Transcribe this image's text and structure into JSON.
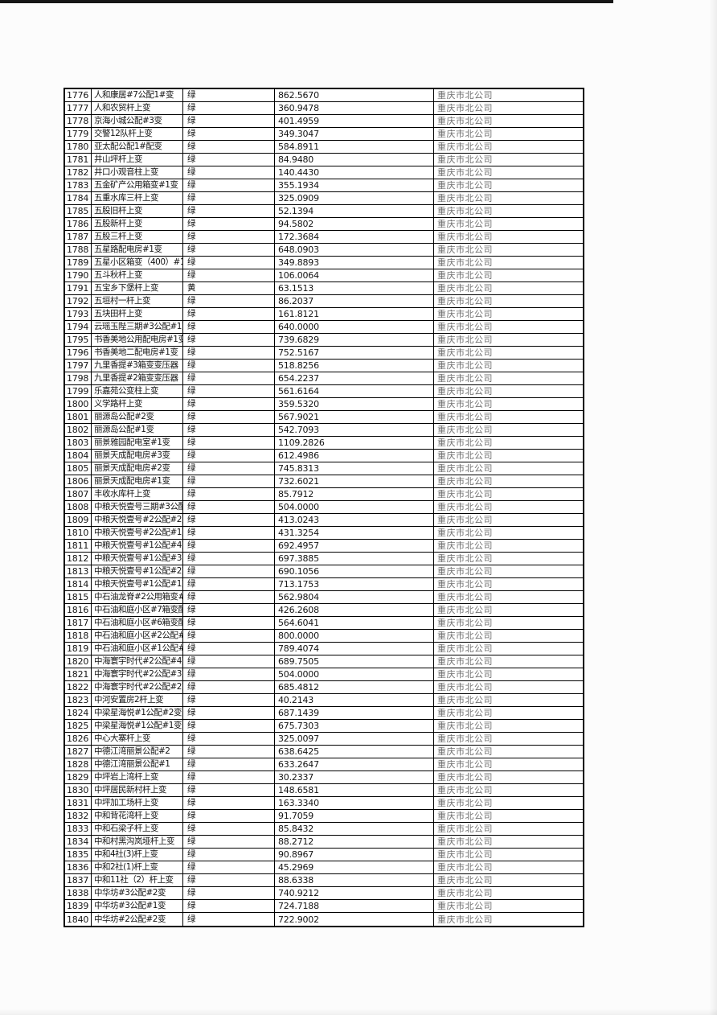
{
  "colors": {
    "grid": "#000000",
    "text": "#141414",
    "company_text": "#6f6f6f",
    "top_bar": "#161616"
  },
  "table": {
    "rows": [
      {
        "id": "1776",
        "name": "人和康居#7公配1#变",
        "status": "绿",
        "value": "862.5670",
        "company": "重庆市北公司"
      },
      {
        "id": "1777",
        "name": "人和农贸杆上变",
        "status": "绿",
        "value": "360.9478",
        "company": "重庆市北公司"
      },
      {
        "id": "1778",
        "name": "京海小城公配#3变",
        "status": "绿",
        "value": "401.4959",
        "company": "重庆市北公司"
      },
      {
        "id": "1779",
        "name": "交警12队杆上变",
        "status": "绿",
        "value": "349.3047",
        "company": "重庆市北公司"
      },
      {
        "id": "1780",
        "name": "亚太配公配1#配变",
        "status": "绿",
        "value": "584.8911",
        "company": "重庆市北公司"
      },
      {
        "id": "1781",
        "name": "井山坪杆上变",
        "status": "绿",
        "value": "84.9480",
        "company": "重庆市北公司"
      },
      {
        "id": "1782",
        "name": "井口小观音柱上变",
        "status": "绿",
        "value": "140.4430",
        "company": "重庆市北公司"
      },
      {
        "id": "1783",
        "name": "五金矿产公用箱变#1变",
        "status": "绿",
        "value": "355.1934",
        "company": "重庆市北公司"
      },
      {
        "id": "1784",
        "name": "五重水库三杆上变",
        "status": "绿",
        "value": "325.0909",
        "company": "重庆市北公司"
      },
      {
        "id": "1785",
        "name": "五股旧杆上变",
        "status": "绿",
        "value": "52.1394",
        "company": "重庆市北公司"
      },
      {
        "id": "1786",
        "name": "五股新杆上变",
        "status": "绿",
        "value": "94.5802",
        "company": "重庆市北公司"
      },
      {
        "id": "1787",
        "name": "五股三杆上变",
        "status": "绿",
        "value": "172.3684",
        "company": "重庆市北公司"
      },
      {
        "id": "1788",
        "name": "五星路配电房#1变",
        "status": "绿",
        "value": "648.0903",
        "company": "重庆市北公司"
      },
      {
        "id": "1789",
        "name": "五星小区箱变（400）#1变",
        "status": "绿",
        "value": "349.8893",
        "company": "重庆市北公司"
      },
      {
        "id": "1790",
        "name": "五斗秋杆上变",
        "status": "绿",
        "value": "106.0064",
        "company": "重庆市北公司"
      },
      {
        "id": "1791",
        "name": "五宝乡下堡杆上变",
        "status": "黄",
        "value": "63.1513",
        "company": "重庆市北公司"
      },
      {
        "id": "1792",
        "name": "五垣村一杆上变",
        "status": "绿",
        "value": "86.2037",
        "company": "重庆市北公司"
      },
      {
        "id": "1793",
        "name": "五块田杆上变",
        "status": "绿",
        "value": "161.8121",
        "company": "重庆市北公司"
      },
      {
        "id": "1794",
        "name": "云瑶玉陛三期#3公配#1变",
        "status": "绿",
        "value": "640.0000",
        "company": "重庆市北公司"
      },
      {
        "id": "1795",
        "name": "书香美地公用配电房#1变",
        "status": "绿",
        "value": "739.6829",
        "company": "重庆市北公司"
      },
      {
        "id": "1796",
        "name": "书香美地二配电房#1变",
        "status": "绿",
        "value": "752.5167",
        "company": "重庆市北公司"
      },
      {
        "id": "1797",
        "name": "九里香提#3箱变变压器",
        "status": "绿",
        "value": "518.8256",
        "company": "重庆市北公司"
      },
      {
        "id": "1798",
        "name": "九里香提#2箱变变压器",
        "status": "绿",
        "value": "654.2237",
        "company": "重庆市北公司"
      },
      {
        "id": "1799",
        "name": "乐嘉苑公变柱上变",
        "status": "绿",
        "value": "561.6164",
        "company": "重庆市北公司"
      },
      {
        "id": "1800",
        "name": "义学路杆上变",
        "status": "绿",
        "value": "359.5320",
        "company": "重庆市北公司"
      },
      {
        "id": "1801",
        "name": "丽源岛公配#2变",
        "status": "绿",
        "value": "567.9021",
        "company": "重庆市北公司"
      },
      {
        "id": "1802",
        "name": "丽源岛公配#1变",
        "status": "绿",
        "value": "542.7093",
        "company": "重庆市北公司"
      },
      {
        "id": "1803",
        "name": "丽景雅园配电室#1变",
        "status": "绿",
        "value": "1109.2826",
        "company": "重庆市北公司"
      },
      {
        "id": "1804",
        "name": "丽景天成配电房#3变",
        "status": "绿",
        "value": "612.4986",
        "company": "重庆市北公司"
      },
      {
        "id": "1805",
        "name": "丽景天成配电房#2变",
        "status": "绿",
        "value": "745.8313",
        "company": "重庆市北公司"
      },
      {
        "id": "1806",
        "name": "丽景天成配电房#1变",
        "status": "绿",
        "value": "732.6021",
        "company": "重庆市北公司"
      },
      {
        "id": "1807",
        "name": "丰收水库杆上变",
        "status": "绿",
        "value": "85.7912",
        "company": "重庆市北公司"
      },
      {
        "id": "1808",
        "name": "中粮天悦壹号三期#3公配",
        "status": "绿",
        "value": "504.0000",
        "company": "重庆市北公司"
      },
      {
        "id": "1809",
        "name": "中粮天悦壹号#2公配#2变",
        "status": "绿",
        "value": "413.0243",
        "company": "重庆市北公司"
      },
      {
        "id": "1810",
        "name": "中粮天悦壹号#2公配#1变",
        "status": "绿",
        "value": "431.3254",
        "company": "重庆市北公司"
      },
      {
        "id": "1811",
        "name": "中粮天悦壹号#1公配#4变",
        "status": "绿",
        "value": "692.4957",
        "company": "重庆市北公司"
      },
      {
        "id": "1812",
        "name": "中粮天悦壹号#1公配#3变",
        "status": "绿",
        "value": "697.3885",
        "company": "重庆市北公司"
      },
      {
        "id": "1813",
        "name": "中粮天悦壹号#1公配#2变",
        "status": "绿",
        "value": "690.1056",
        "company": "重庆市北公司"
      },
      {
        "id": "1814",
        "name": "中粮天悦壹号#1公配#1变",
        "status": "绿",
        "value": "713.1753",
        "company": "重庆市北公司"
      },
      {
        "id": "1815",
        "name": "中石油龙脊#2公用箱变#1",
        "status": "绿",
        "value": "562.9804",
        "company": "重庆市北公司"
      },
      {
        "id": "1816",
        "name": "中石油和庭小区#7箱变配",
        "status": "绿",
        "value": "426.2608",
        "company": "重庆市北公司"
      },
      {
        "id": "1817",
        "name": "中石油和庭小区#6箱变配",
        "status": "绿",
        "value": "564.6041",
        "company": "重庆市北公司"
      },
      {
        "id": "1818",
        "name": "中石油和庭小区#2公配#2",
        "status": "绿",
        "value": "800.0000",
        "company": "重庆市北公司"
      },
      {
        "id": "1819",
        "name": "中石油和庭小区#1公配#2",
        "status": "绿",
        "value": "789.4074",
        "company": "重庆市北公司"
      },
      {
        "id": "1820",
        "name": "中海寰宇时代#2公配#4变",
        "status": "绿",
        "value": "689.7505",
        "company": "重庆市北公司"
      },
      {
        "id": "1821",
        "name": "中海寰宇时代#2公配#3变",
        "status": "绿",
        "value": "504.0000",
        "company": "重庆市北公司"
      },
      {
        "id": "1822",
        "name": "中海寰宇时代#2公配#2变",
        "status": "绿",
        "value": "685.4812",
        "company": "重庆市北公司"
      },
      {
        "id": "1823",
        "name": "中河安置房2杆上变",
        "status": "绿",
        "value": "40.2143",
        "company": "重庆市北公司"
      },
      {
        "id": "1824",
        "name": "中梁星海悦#1公配#2变",
        "status": "绿",
        "value": "687.1439",
        "company": "重庆市北公司"
      },
      {
        "id": "1825",
        "name": "中梁星海悦#1公配#1变",
        "status": "绿",
        "value": "675.7303",
        "company": "重庆市北公司"
      },
      {
        "id": "1826",
        "name": "中心大寨杆上变",
        "status": "绿",
        "value": "325.0097",
        "company": "重庆市北公司"
      },
      {
        "id": "1827",
        "name": "中德江湾丽景公配#2",
        "status": "绿",
        "value": "638.6425",
        "company": "重庆市北公司"
      },
      {
        "id": "1828",
        "name": "中德江湾丽景公配#1",
        "status": "绿",
        "value": "633.2647",
        "company": "重庆市北公司"
      },
      {
        "id": "1829",
        "name": "中坪岩上湾杆上变",
        "status": "绿",
        "value": "30.2337",
        "company": "重庆市北公司"
      },
      {
        "id": "1830",
        "name": "中坪居民新村杆上变",
        "status": "绿",
        "value": "148.6581",
        "company": "重庆市北公司"
      },
      {
        "id": "1831",
        "name": "中坪加工场杆上变",
        "status": "绿",
        "value": "163.3340",
        "company": "重庆市北公司"
      },
      {
        "id": "1832",
        "name": "中和背花湾杆上变",
        "status": "绿",
        "value": "91.7059",
        "company": "重庆市北公司"
      },
      {
        "id": "1833",
        "name": "中和石梁子杆上变",
        "status": "绿",
        "value": "85.8432",
        "company": "重庆市北公司"
      },
      {
        "id": "1834",
        "name": "中和村黑沟岚垭杆上变",
        "status": "绿",
        "value": "88.2712",
        "company": "重庆市北公司"
      },
      {
        "id": "1835",
        "name": "中和4社(3)杆上变",
        "status": "绿",
        "value": "90.8967",
        "company": "重庆市北公司"
      },
      {
        "id": "1836",
        "name": "中和2社(1)杆上变",
        "status": "绿",
        "value": "45.2969",
        "company": "重庆市北公司"
      },
      {
        "id": "1837",
        "name": "中和11社（2）杆上变",
        "status": "绿",
        "value": "88.6338",
        "company": "重庆市北公司"
      },
      {
        "id": "1838",
        "name": "中华坊#3公配#2变",
        "status": "绿",
        "value": "740.9212",
        "company": "重庆市北公司"
      },
      {
        "id": "1839",
        "name": "中华坊#3公配#1变",
        "status": "绿",
        "value": "724.7188",
        "company": "重庆市北公司"
      },
      {
        "id": "1840",
        "name": "中华坊#2公配#2变",
        "status": "绿",
        "value": "722.9002",
        "company": "重庆市北公司"
      }
    ]
  }
}
